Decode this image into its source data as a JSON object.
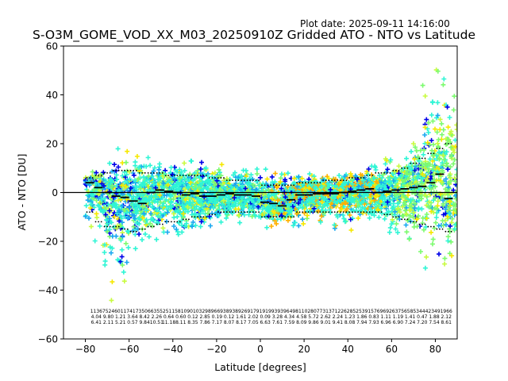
{
  "plot_date": "Plot date: 2025-09-11 14:16:00",
  "chart_data": {
    "type": "scatter",
    "title": "S-O3M_GOME_VOD_XX_M03_20250910Z Gridded ATO - NTO vs Latitude",
    "xlabel": "Latitude [degrees]",
    "ylabel": "ATO - NTO [DU]",
    "xlim": [
      -90,
      90
    ],
    "ylim": [
      -60,
      60
    ],
    "xticks": [
      -80,
      -60,
      -40,
      -20,
      0,
      20,
      40,
      60,
      80
    ],
    "yticks": [
      -60,
      -40,
      -20,
      0,
      20,
      40,
      60
    ],
    "grid": false,
    "marker": "+",
    "colors": {
      "blue": "#0000e8",
      "sky": "#1aa8f0",
      "cyan": "#2ff5d5",
      "aqua": "#38f0c8",
      "lime": "#7cfb6f",
      "yellowgreen": "#c8fb40",
      "yellow": "#f6e800",
      "orange": "#ffb000",
      "zero_line": "#000000",
      "mean_line": "#000000"
    },
    "zero_line_y": 0,
    "mean_bins": {
      "latitude_centers": [
        -78,
        -74,
        -70,
        -66,
        -62,
        -58,
        -54,
        -50,
        -46,
        -42,
        -38,
        -34,
        -30,
        -26,
        -22,
        -18,
        -14,
        -10,
        -6,
        -2,
        2,
        6,
        10,
        14,
        18,
        22,
        26,
        30,
        34,
        38,
        42,
        46,
        50,
        54,
        58,
        62,
        66,
        70,
        74,
        78,
        82,
        86
      ],
      "mean": [
        4.0,
        2.0,
        0.0,
        -1.5,
        -2.0,
        -3.5,
        -4.5,
        0.0,
        1.0,
        0.5,
        0.0,
        -1.0,
        -0.5,
        -1.5,
        -1.5,
        -1.0,
        -0.5,
        -1.0,
        -1.0,
        -1.5,
        -4.0,
        -4.5,
        -5.5,
        -3.0,
        -1.0,
        -1.0,
        -0.5,
        -0.5,
        -0.5,
        0.0,
        0.5,
        1.0,
        1.5,
        0.0,
        0.5,
        1.0,
        1.5,
        2.0,
        2.5,
        4.0,
        7.5,
        -2.5
      ],
      "sd_upper": [
        6,
        7,
        8,
        9,
        9,
        9,
        8,
        8,
        8,
        7,
        7,
        7,
        7,
        7,
        6,
        6,
        5,
        5,
        5,
        5,
        3,
        3,
        3,
        3,
        4,
        4,
        4,
        5,
        5,
        5,
        6,
        6,
        7,
        8,
        8,
        9,
        10,
        12,
        14,
        16,
        18,
        20
      ],
      "sd_lower": [
        -8,
        -12,
        -14,
        -14,
        -15,
        -16,
        -15,
        -14,
        -13,
        -12,
        -12,
        -11,
        -10,
        -10,
        -9,
        -8,
        -8,
        -8,
        -8,
        -8,
        -10,
        -10,
        -10,
        -10,
        -8,
        -8,
        -8,
        -8,
        -8,
        -8,
        -8,
        -8,
        -8,
        -8,
        -9,
        -10,
        -11,
        -12,
        -13,
        -14,
        -15,
        -16
      ]
    },
    "bin_stats": {
      "row1": [
        "1136",
        "7524",
        "6011",
        "7417",
        "3506",
        "6355",
        "2511",
        "5810",
        "9010",
        "3298",
        "9669",
        "3893",
        "8926",
        "9179",
        "1919",
        "9393",
        "9649",
        "8110",
        "2807",
        "7313",
        "7122",
        "6285",
        "2539",
        "1576",
        "9692",
        "6375",
        "6585",
        "3444",
        "2349",
        "1966"
      ],
      "row2": [
        "4.04",
        "9.80",
        "1.21",
        "3.64",
        "8.42",
        "2.26",
        "0.64",
        "0.60",
        "0.12",
        "2.85",
        "0.19",
        "0.12",
        "1.61",
        "2.02",
        "0.09",
        "3.28",
        "4.34",
        "4.58",
        "5.72",
        "2.62",
        "2.24",
        "1.23",
        "1.86",
        "0.83",
        "1.11",
        "1.19",
        "1.41",
        "0.47",
        "1.88",
        "2.12"
      ],
      "row3": [
        "6.41",
        "2.11",
        "5.21",
        "0.57",
        "9.84",
        "10.51",
        "11.18",
        "8.11",
        "8.35",
        "7.86",
        "7.17",
        "8.07",
        "8.17",
        "7.05",
        "6.63",
        "7.61",
        "7.59",
        "8.09",
        "9.86",
        "9.01",
        "9.41",
        "8.08",
        "7.94",
        "7.93",
        "6.96",
        "6.90",
        "7.24",
        "7.20",
        "7.54",
        "8.61"
      ]
    }
  }
}
